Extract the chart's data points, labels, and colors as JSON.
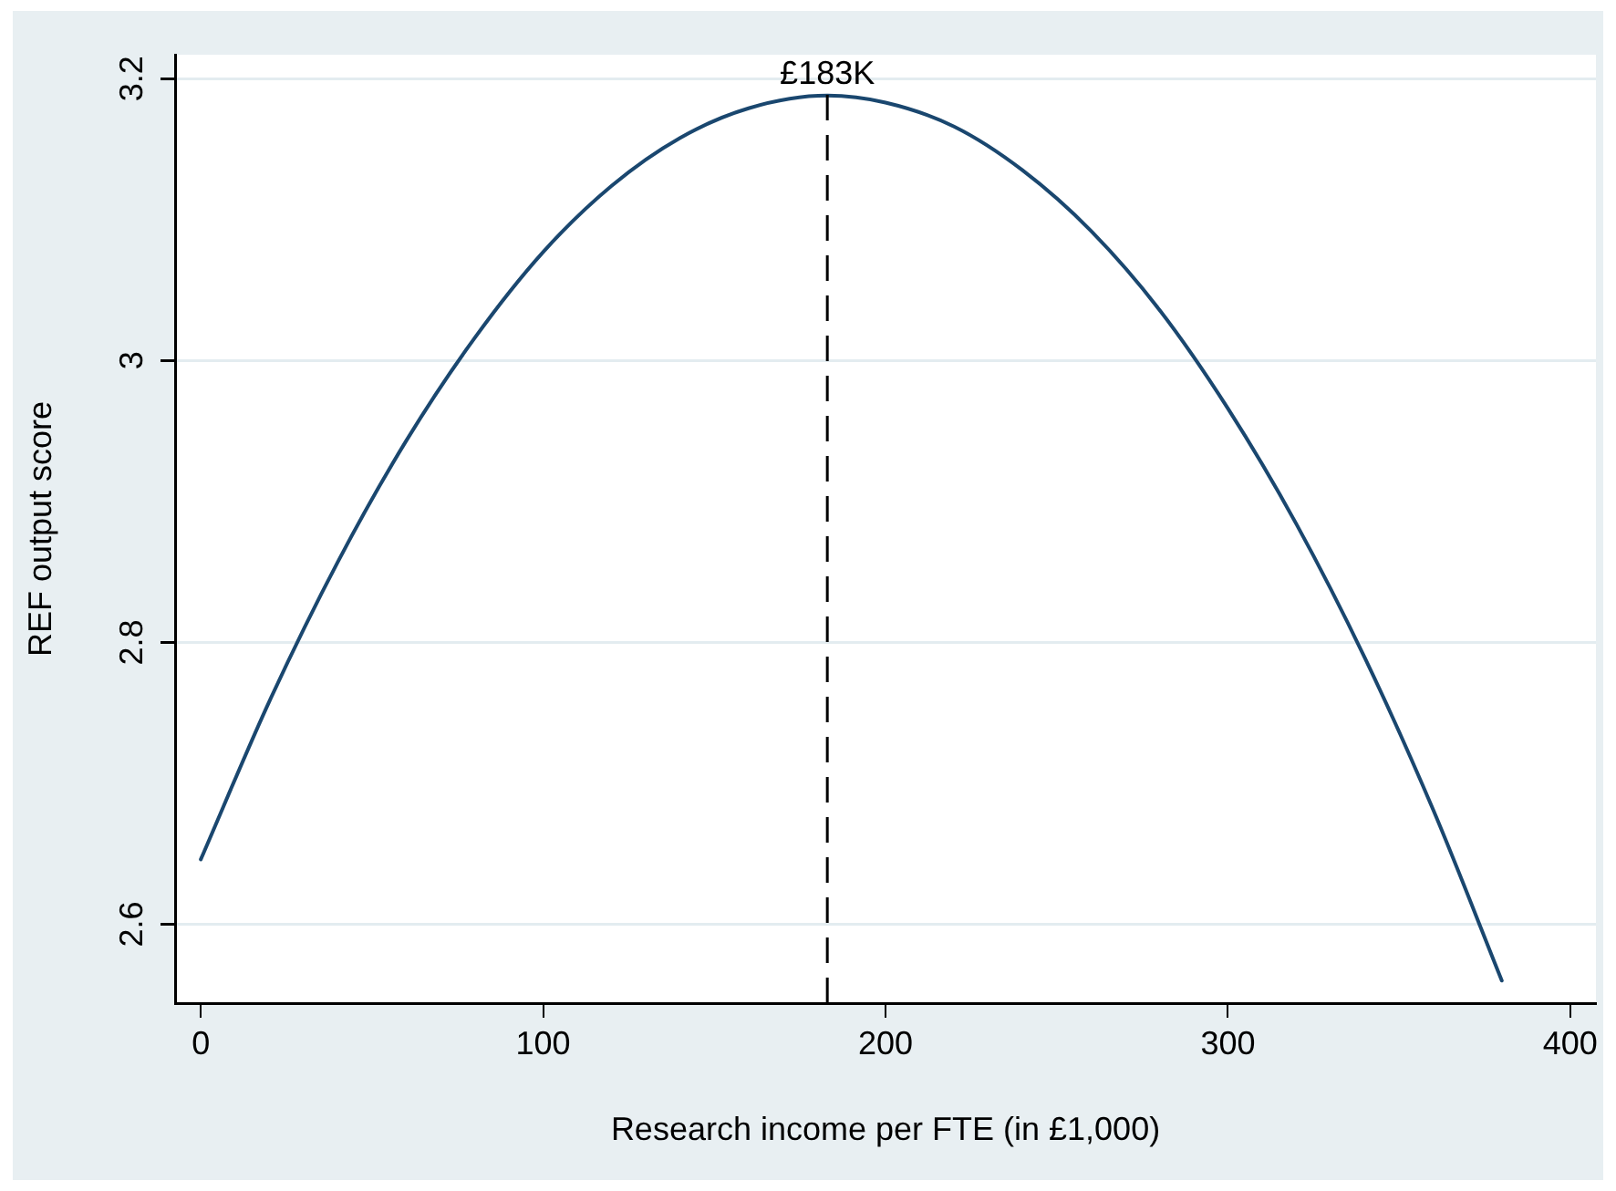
{
  "chart_data": {
    "type": "line",
    "xlabel": "Research income per FTE (in £1,000)",
    "ylabel": "REF output score",
    "x": [
      0,
      20,
      40,
      60,
      80,
      100,
      120,
      140,
      160,
      183,
      200,
      220,
      240,
      260,
      280,
      300,
      320,
      340,
      360,
      380
    ],
    "series": [
      {
        "color": "#1a476f",
        "values": [
          2.646,
          2.758,
          2.857,
          2.943,
          3.016,
          3.077,
          3.124,
          3.158,
          3.179,
          3.188,
          3.183,
          3.166,
          3.135,
          3.092,
          3.036,
          2.966,
          2.884,
          2.789,
          2.681,
          2.56
        ]
      }
    ],
    "xlim": [
      -7.5,
      407.5
    ],
    "xticks": [
      0,
      100,
      200,
      300,
      400
    ],
    "ylim": [
      2.544,
      3.217
    ],
    "yticks": [
      2.6,
      2.8,
      3,
      3.2
    ],
    "ref_lines": [
      {
        "axis": "x",
        "value": 183,
        "label": "£183K",
        "color": "#000000",
        "line_style": "dashed"
      }
    ],
    "grid": "y",
    "legend": false,
    "marker": "none",
    "line_style": "solid"
  }
}
